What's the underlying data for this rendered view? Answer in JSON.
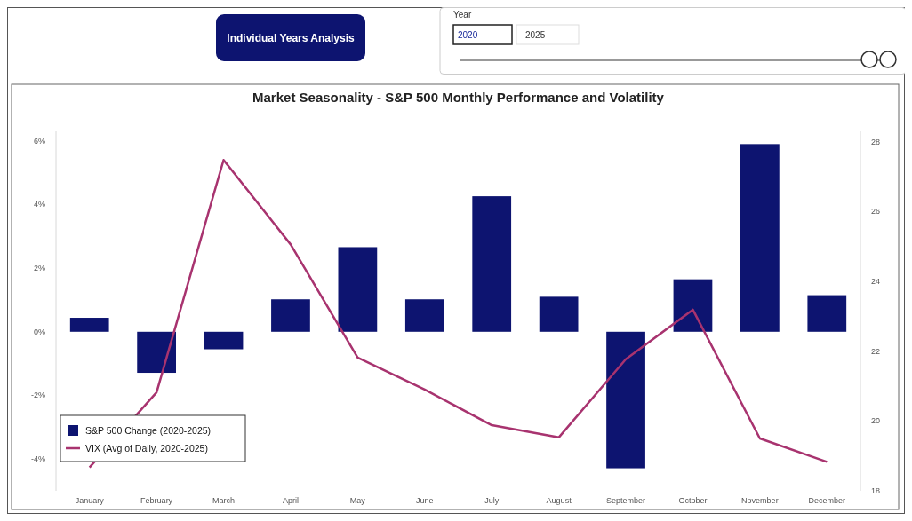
{
  "chart_data": {
    "type": "bar",
    "title": "Market Seasonality - S&P 500 Monthly Performance and Volatility",
    "annotations": [
      "Individual Years Analysis",
      "Year",
      "2020",
      "2025"
    ],
    "categories": [
      "January",
      "February",
      "March",
      "April",
      "May",
      "June",
      "July",
      "August",
      "September",
      "October",
      "November",
      "December"
    ],
    "series": [
      {
        "name": "S&P 500 Change (2020-2025)",
        "color": "#0d1470",
        "values": [
          0.44,
          -1.29,
          -0.55,
          1.02,
          2.66,
          1.02,
          4.26,
          1.1,
          -4.29,
          1.65,
          5.9,
          1.15
        ]
      },
      {
        "name": "VIX (Avg of Daily, 2020-2025)",
        "type": "line",
        "axis": "y2",
        "color": "#a8336f",
        "values": [
          18.67,
          20.82,
          27.48,
          25.06,
          21.82,
          20.9,
          19.88,
          19.53,
          21.77,
          23.19,
          19.5,
          18.83
        ]
      }
    ],
    "ylim": [
      -5,
      6.3
    ],
    "yticks": [
      {
        "value": -4,
        "label": "-4%"
      },
      {
        "value": -2,
        "label": "-2%"
      },
      {
        "value": 0,
        "label": "0%"
      },
      {
        "value": 2,
        "label": "2%"
      },
      {
        "value": 4,
        "label": "4%"
      },
      {
        "value": 6,
        "label": "6%"
      }
    ],
    "y2lim": [
      18,
      28.3
    ],
    "y2ticks": [
      18,
      20,
      22,
      24,
      26,
      28
    ],
    "legend": "bottom left",
    "grid": false,
    "marker": "none",
    "line_style": "solid"
  }
}
